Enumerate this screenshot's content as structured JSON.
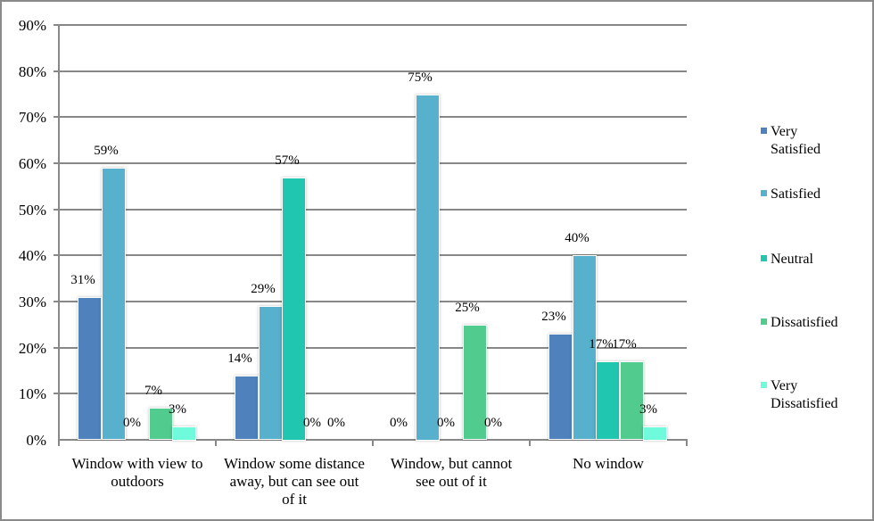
{
  "chart_data": {
    "type": "bar",
    "title": "",
    "xlabel": "",
    "ylabel": "",
    "ylim": [
      0,
      0.9
    ],
    "grid": true,
    "legend_position": "right",
    "y_ticks": [
      "0%",
      "10%",
      "20%",
      "30%",
      "40%",
      "50%",
      "60%",
      "70%",
      "80%",
      "90%"
    ],
    "categories": [
      "Window with view to outdoors",
      "Window some distance away, but can see out of it",
      "Window, but cannot see out of it",
      "No window"
    ],
    "series": [
      {
        "name": "Very Satisfied",
        "color": "#4f81bd",
        "values": [
          31,
          14,
          0,
          23
        ],
        "labels": [
          "31%",
          "14%",
          "0%",
          "23%"
        ]
      },
      {
        "name": "Satisfied",
        "color": "#57b1cd",
        "values": [
          59,
          29,
          75,
          40
        ],
        "labels": [
          "59%",
          "29%",
          "75%",
          "40%"
        ]
      },
      {
        "name": "Neutral",
        "color": "#20c6b0",
        "values": [
          0,
          57,
          0,
          17
        ],
        "labels": [
          "0%",
          "57%",
          "0%",
          "17%"
        ]
      },
      {
        "name": "Dissatisfied",
        "color": "#52cb8e",
        "values": [
          7,
          0,
          25,
          17
        ],
        "labels": [
          "7%",
          "0%",
          "25%",
          "17%"
        ]
      },
      {
        "name": "Very Dissatisfied",
        "color": "#6ffadc",
        "values": [
          3,
          0,
          0,
          3
        ],
        "labels": [
          "3%",
          "0%",
          "0%",
          "3%"
        ]
      }
    ]
  },
  "legend": [
    {
      "line1": "Very",
      "line2": "Satisfied"
    },
    {
      "line1": "Satisfied",
      "line2": ""
    },
    {
      "line1": "Neutral",
      "line2": ""
    },
    {
      "line1": "Dissatisfied",
      "line2": ""
    },
    {
      "line1": "Very",
      "line2": "Dissatisfied"
    }
  ],
  "category_labels": [
    {
      "l1": "Window with view to",
      "l2": "outdoors",
      "l3": ""
    },
    {
      "l1": "Window some distance",
      "l2": "away, but can see out",
      "l3": "of it"
    },
    {
      "l1": "Window, but cannot",
      "l2": "see out of it",
      "l3": ""
    },
    {
      "l1": "No window",
      "l2": "",
      "l3": ""
    }
  ]
}
